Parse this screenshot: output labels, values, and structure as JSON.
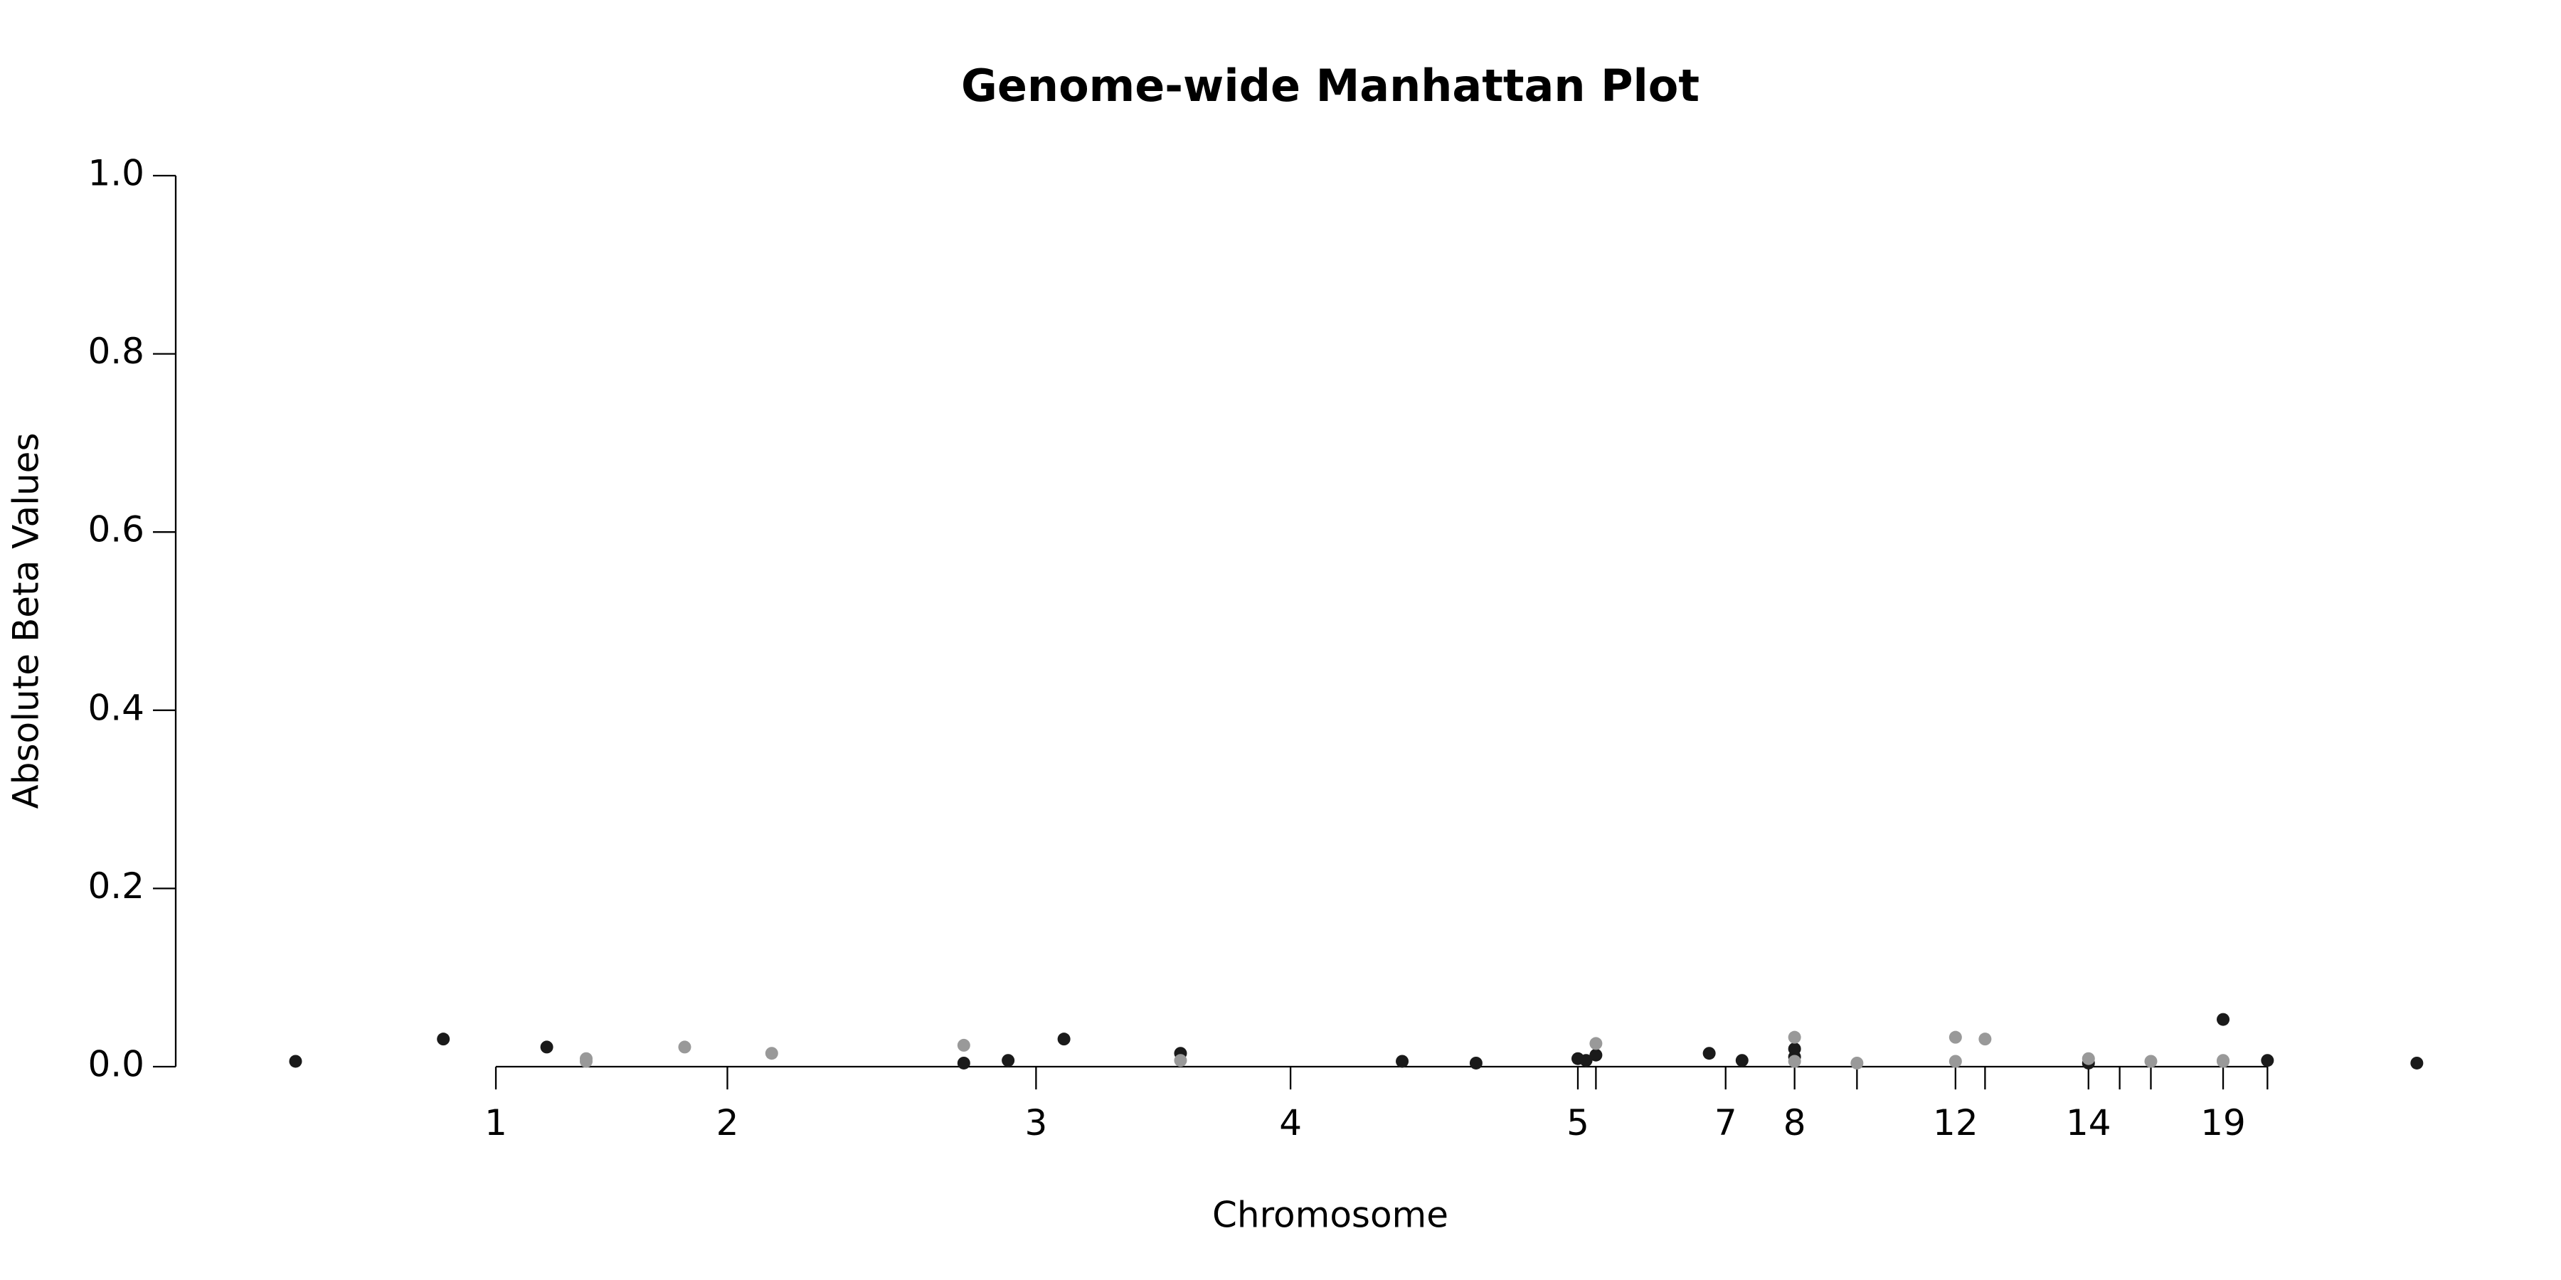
{
  "chart_data": {
    "type": "scatter",
    "title": "Genome-wide Manhattan Plot",
    "xlabel": "Chromosome",
    "ylabel": "Absolute Beta Values",
    "xlim": [
      0,
      1406
    ],
    "ylim": [
      0,
      1
    ],
    "yticks": [
      {
        "value": 0,
        "label": "0.0"
      },
      0.2,
      0.4,
      0.6,
      0.8,
      {
        "value": 1,
        "label": "1.0"
      }
    ],
    "xticks": [
      {
        "value": 195,
        "label": "1"
      },
      {
        "value": 336,
        "label": "2"
      },
      {
        "value": 524,
        "label": "3"
      },
      {
        "value": 679,
        "label": "4"
      },
      {
        "value": 854,
        "label": "5"
      },
      {
        "value": 865,
        "label": null
      },
      {
        "value": 944,
        "label": "7"
      },
      {
        "value": 986,
        "label": "8"
      },
      {
        "value": 1024,
        "label": null
      },
      {
        "value": 1084,
        "label": "12"
      },
      {
        "value": 1102,
        "label": null
      },
      {
        "value": 1165,
        "label": "14"
      },
      {
        "value": 1184,
        "label": null
      },
      {
        "value": 1203,
        "label": null
      },
      {
        "value": 1247,
        "label": "19"
      },
      {
        "value": 1274,
        "label": null
      }
    ],
    "series": [
      {
        "color": "#1a1a1a",
        "x": [
          73,
          163,
          226,
          480,
          507,
          541,
          612,
          747,
          792,
          854,
          859,
          865,
          934,
          954,
          986,
          986,
          1165,
          1247,
          1274,
          1365
        ],
        "values": [
          0.006,
          0.031,
          0.022,
          0.004,
          0.007,
          0.031,
          0.015,
          0.006,
          0.004,
          0.009,
          0.007,
          0.013,
          0.015,
          0.007,
          0.02,
          0.011,
          0.004,
          0.053,
          0.007,
          0.004
        ]
      },
      {
        "color": "#999999",
        "x": [
          250,
          250,
          310,
          363,
          480,
          612,
          865,
          986,
          986,
          1024,
          1084,
          1084,
          1102,
          1165,
          1203,
          1247,
          1247
        ],
        "values": [
          0.009,
          0.006,
          0.022,
          0.015,
          0.024,
          0.007,
          0.026,
          0.033,
          0.006,
          0.004,
          0.033,
          0.006,
          0.031,
          0.009,
          0.006,
          0.007,
          0.006
        ]
      }
    ]
  }
}
